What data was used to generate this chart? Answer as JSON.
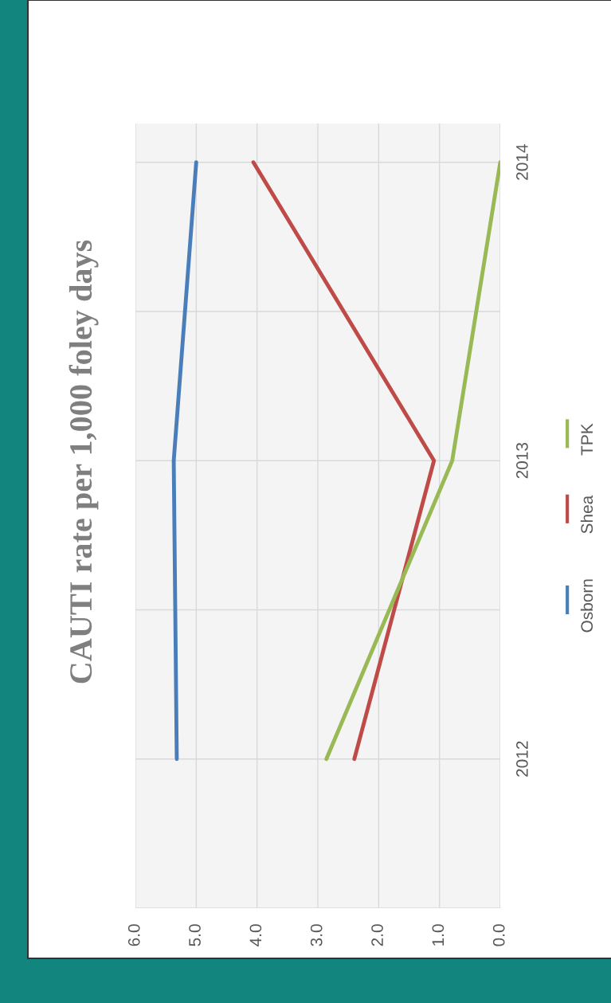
{
  "chart_data": {
    "type": "line",
    "title": "CAUTI rate per 1,000 foley days",
    "orientation": "horizontal",
    "categories": [
      "2014",
      "2013",
      "2012"
    ],
    "series": [
      {
        "name": "Osborn",
        "color": "#4a7ebb",
        "values": [
          5.0,
          5.37,
          5.32
        ]
      },
      {
        "name": "Shea",
        "color": "#be4b48",
        "values": [
          4.06,
          1.09,
          2.4
        ]
      },
      {
        "name": "TPK",
        "color": "#98b954",
        "values": [
          0.0,
          0.79,
          2.86
        ]
      }
    ],
    "xlim": [
      6,
      0
    ],
    "xticks": [
      {
        "value": 6,
        "label": "6.0"
      },
      {
        "value": 5,
        "label": "5.0"
      },
      {
        "value": 4,
        "label": "4.0"
      },
      {
        "value": 3,
        "label": "3.0"
      },
      {
        "value": 2,
        "label": "2.0"
      },
      {
        "value": 1,
        "label": "1.0"
      },
      {
        "value": 0,
        "label": "0.0"
      }
    ],
    "grid": true,
    "legend": "right",
    "marker": "none",
    "line_style": "solid"
  }
}
